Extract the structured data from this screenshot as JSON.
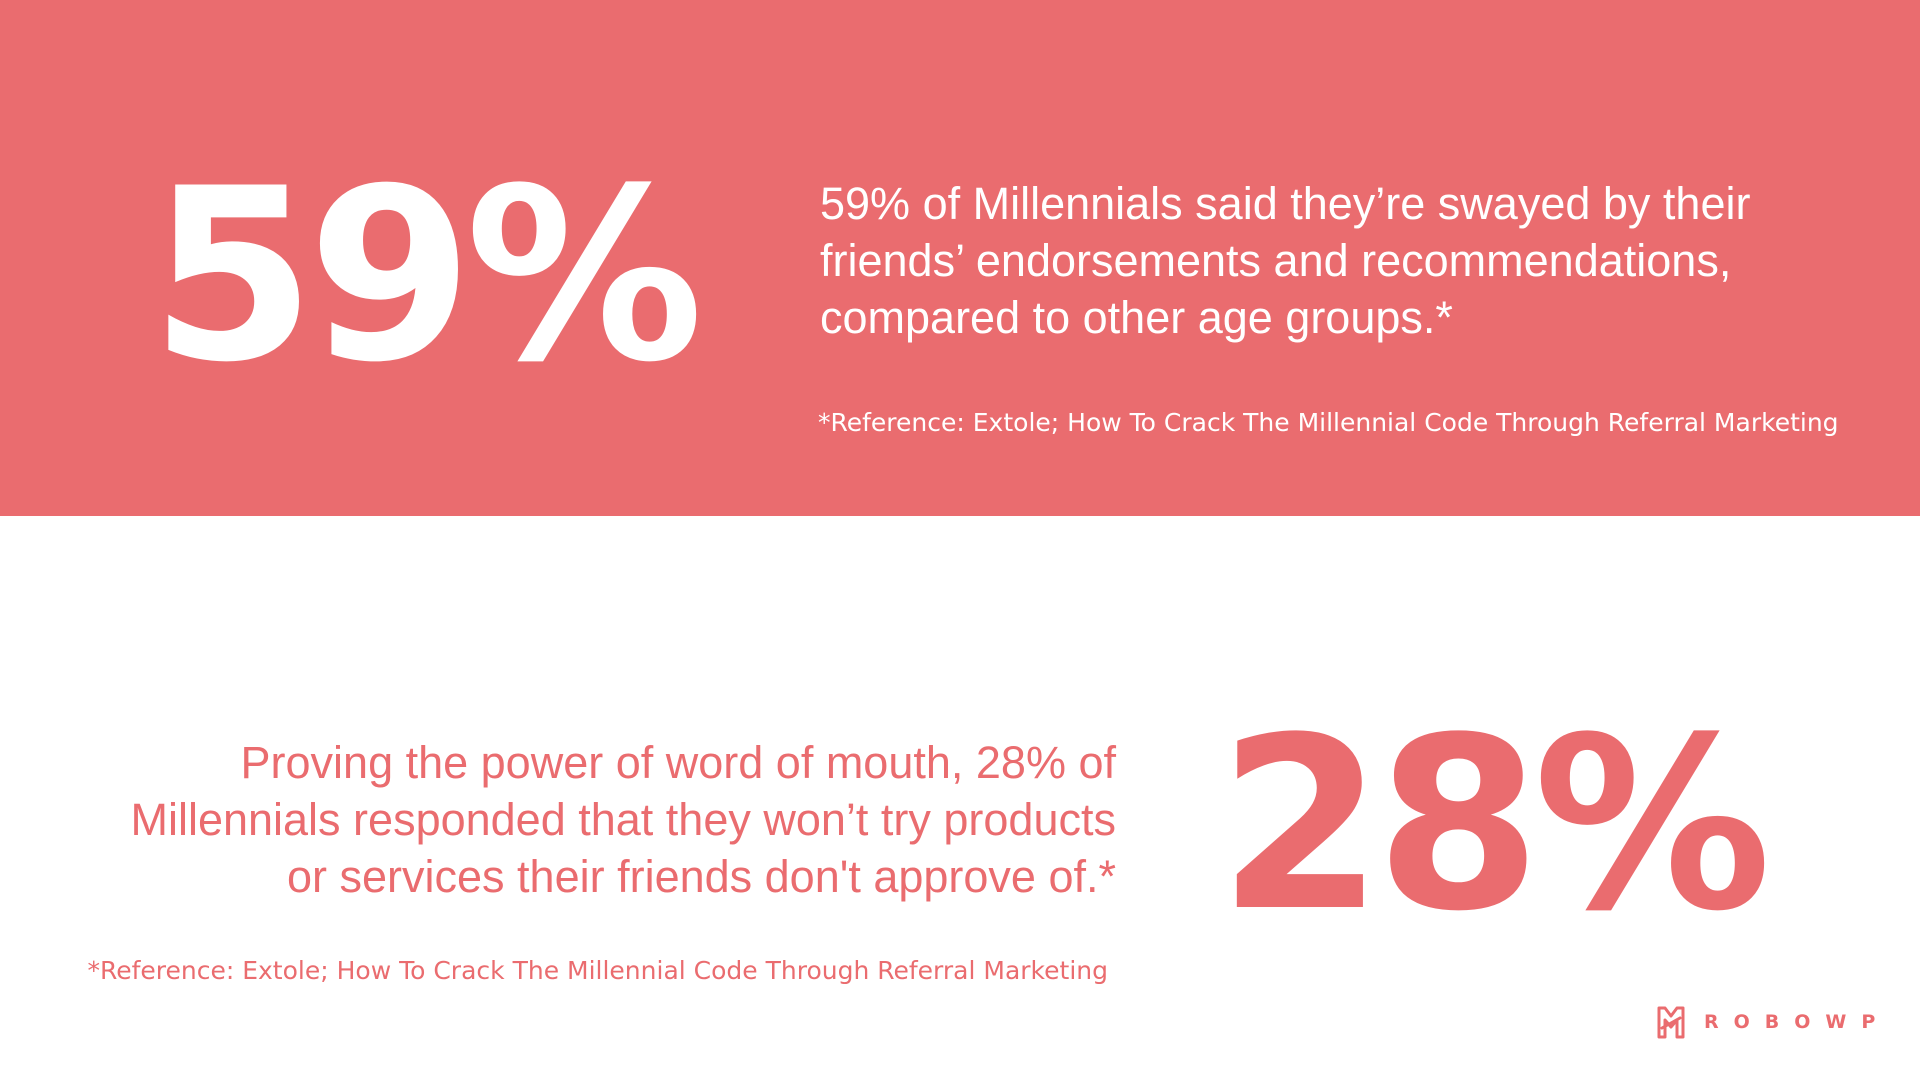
{
  "colors": {
    "accent": "#EA6C6F",
    "background": "#FFFFFF",
    "text_on_accent": "#FFFFFF"
  },
  "top_section": {
    "stat": "59%",
    "statement_lines": [
      "59% of Millennials said they’re swayed by their",
      "friends’ endorsements and recommendations,",
      "compared to other age groups.*"
    ],
    "reference": "*Reference: Extole; How To Crack The Millennial Code Through Referral Marketing"
  },
  "bottom_section": {
    "stat": "28%",
    "statement_lines": [
      "Proving the power of word of mouth, 28% of",
      "Millennials responded that they won’t try products",
      "or services their friends don't approve of.*"
    ],
    "reference": "*Reference: Extole; How To Crack The Millennial Code Through Referral Marketing"
  },
  "brand": {
    "logo_icon": "robowp-logo-icon",
    "name": "ROBOWP"
  }
}
